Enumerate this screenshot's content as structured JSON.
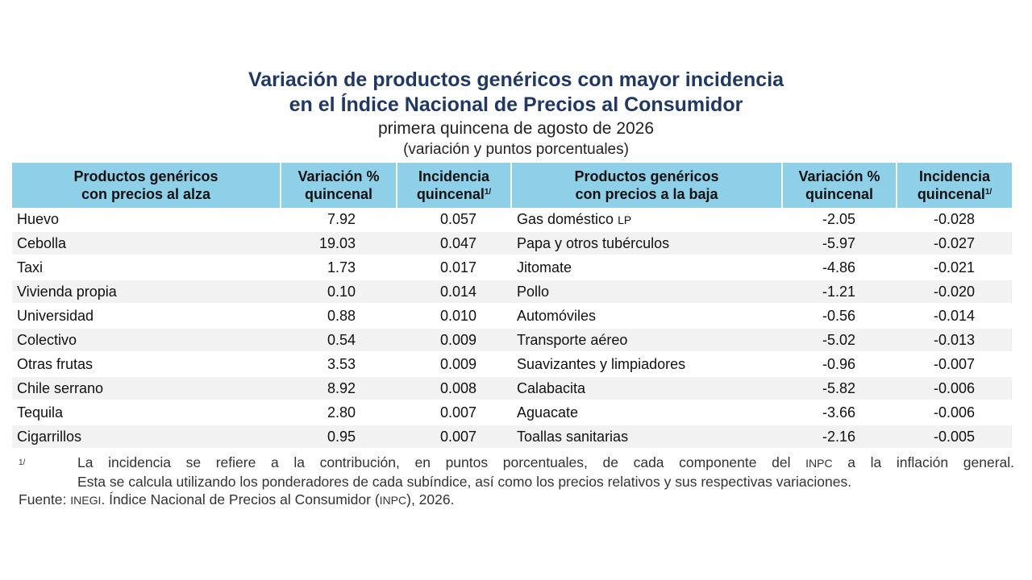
{
  "title": {
    "line1": "Variación de productos genéricos con mayor incidencia",
    "line2": "en el Índice Nacional de Precios al Consumidor"
  },
  "subtitle": "primera quincena de agosto de 2026",
  "subtitle2": "(variación y puntos porcentuales)",
  "table": {
    "headers": {
      "up_name_line1": "Productos genéricos",
      "up_name_line2": "con precios al alza",
      "up_var_line1": "Variación %",
      "up_var_line2": "quincenal",
      "up_inc_line1": "Incidencia",
      "up_inc_line2": "quincenal",
      "up_inc_sup": "1/",
      "down_name_line1": "Productos genéricos",
      "down_name_line2": "con precios a la baja",
      "down_var_line1": "Variación %",
      "down_var_line2": "quincenal",
      "down_inc_line1": "Incidencia",
      "down_inc_line2": "quincenal",
      "down_inc_sup": "1/"
    },
    "rows": [
      {
        "up_name": "Huevo",
        "up_var": "7.92",
        "up_inc": "0.057",
        "down_name": "Gas doméstico",
        "down_suffix": "LP",
        "down_var": "-2.05",
        "down_inc": "-0.028"
      },
      {
        "up_name": "Cebolla",
        "up_var": "19.03",
        "up_inc": "0.047",
        "down_name": "Papa y otros tubérculos",
        "down_suffix": "",
        "down_var": "-5.97",
        "down_inc": "-0.027"
      },
      {
        "up_name": "Taxi",
        "up_var": "1.73",
        "up_inc": "0.017",
        "down_name": "Jitomate",
        "down_suffix": "",
        "down_var": "-4.86",
        "down_inc": "-0.021"
      },
      {
        "up_name": "Vivienda propia",
        "up_var": "0.10",
        "up_inc": "0.014",
        "down_name": "Pollo",
        "down_suffix": "",
        "down_var": "-1.21",
        "down_inc": "-0.020"
      },
      {
        "up_name": "Universidad",
        "up_var": "0.88",
        "up_inc": "0.010",
        "down_name": "Automóviles",
        "down_suffix": "",
        "down_var": "-0.56",
        "down_inc": "-0.014"
      },
      {
        "up_name": "Colectivo",
        "up_var": "0.54",
        "up_inc": "0.009",
        "down_name": "Transporte aéreo",
        "down_suffix": "",
        "down_var": "-5.02",
        "down_inc": "-0.013"
      },
      {
        "up_name": "Otras frutas",
        "up_var": "3.53",
        "up_inc": "0.009",
        "down_name": "Suavizantes y limpiadores",
        "down_suffix": "",
        "down_var": "-0.96",
        "down_inc": "-0.007"
      },
      {
        "up_name": "Chile serrano",
        "up_var": "8.92",
        "up_inc": "0.008",
        "down_name": "Calabacita",
        "down_suffix": "",
        "down_var": "-5.82",
        "down_inc": "-0.006"
      },
      {
        "up_name": "Tequila",
        "up_var": "2.80",
        "up_inc": "0.007",
        "down_name": "Aguacate",
        "down_suffix": "",
        "down_var": "-3.66",
        "down_inc": "-0.006"
      },
      {
        "up_name": "Cigarrillos",
        "up_var": "0.95",
        "up_inc": "0.007",
        "down_name": "Toallas sanitarias",
        "down_suffix": "",
        "down_var": "-2.16",
        "down_inc": "-0.005"
      }
    ]
  },
  "footnote": {
    "marker": "1/",
    "line1_a": "La incidencia se refiere a la contribución, en puntos porcentuales, de cada componente del",
    "line1_abbr": "INPC",
    "line1_b": "a la inflación general.",
    "line2": "Esta se calcula utilizando los ponderadores de cada subíndice, así como los precios relativos y sus respectivas variaciones."
  },
  "source": {
    "label": "Fuente:",
    "org": "INEGI",
    "text_a": ". Índice Nacional de Precios al Consumidor (",
    "abbr": "INPC",
    "text_b": "), 2026."
  }
}
